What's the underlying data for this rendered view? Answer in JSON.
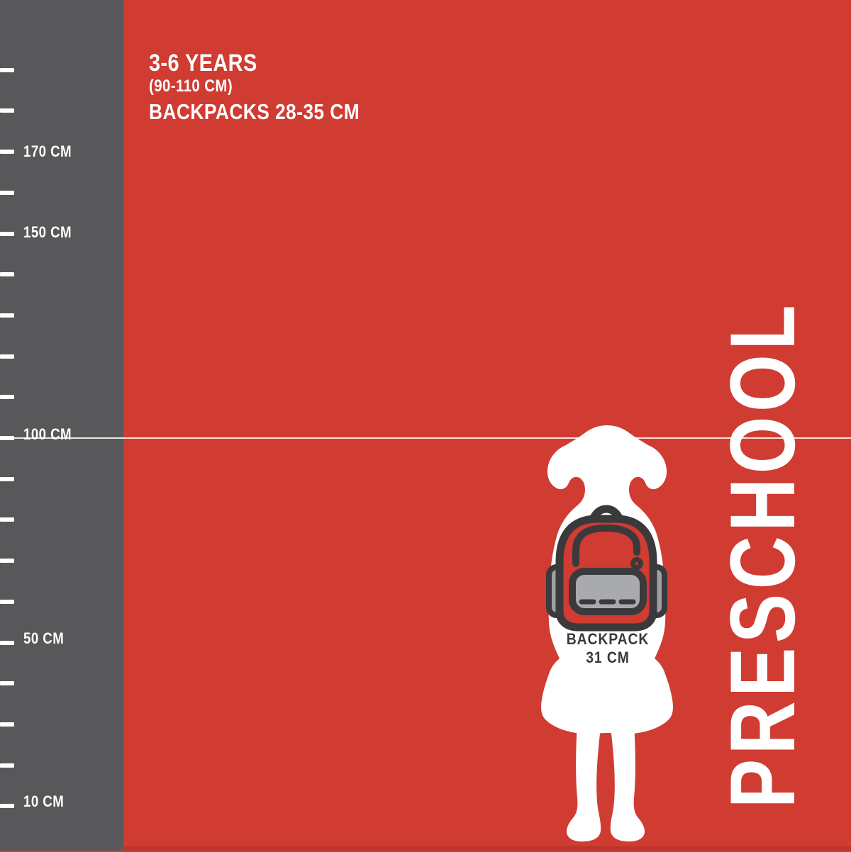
{
  "header": {
    "age_range": "3-6 YEARS",
    "height_range": "(90-110 CM)",
    "backpack_range": "BACKPACKS 28-35 CM"
  },
  "category_label": "PRESCHOOL",
  "backpack_tag": {
    "line1": "BACKPACK",
    "line2": "31 CM"
  },
  "ruler": {
    "unit": "CM",
    "labels": [
      {
        "text": "170 CM",
        "value_cm": 170
      },
      {
        "text": "150 CM",
        "value_cm": 150
      },
      {
        "text": "100 CM",
        "value_cm": 100
      },
      {
        "text": "50 CM",
        "value_cm": 50
      },
      {
        "text": "10 CM",
        "value_cm": 10
      }
    ],
    "tick_step_cm": 10,
    "guide_line_cm": 100
  },
  "icons": {
    "child_silhouette": "girl-back-view-silhouette-icon",
    "backpack": "backpack-icon"
  },
  "colors": {
    "background_red": "#d03b32",
    "ruler_gray": "#58585a",
    "ink_dark": "#3a3a3c",
    "white": "#ffffff",
    "pad_gray": "#9fa0a2",
    "pocket_gray": "#a9aaac"
  }
}
